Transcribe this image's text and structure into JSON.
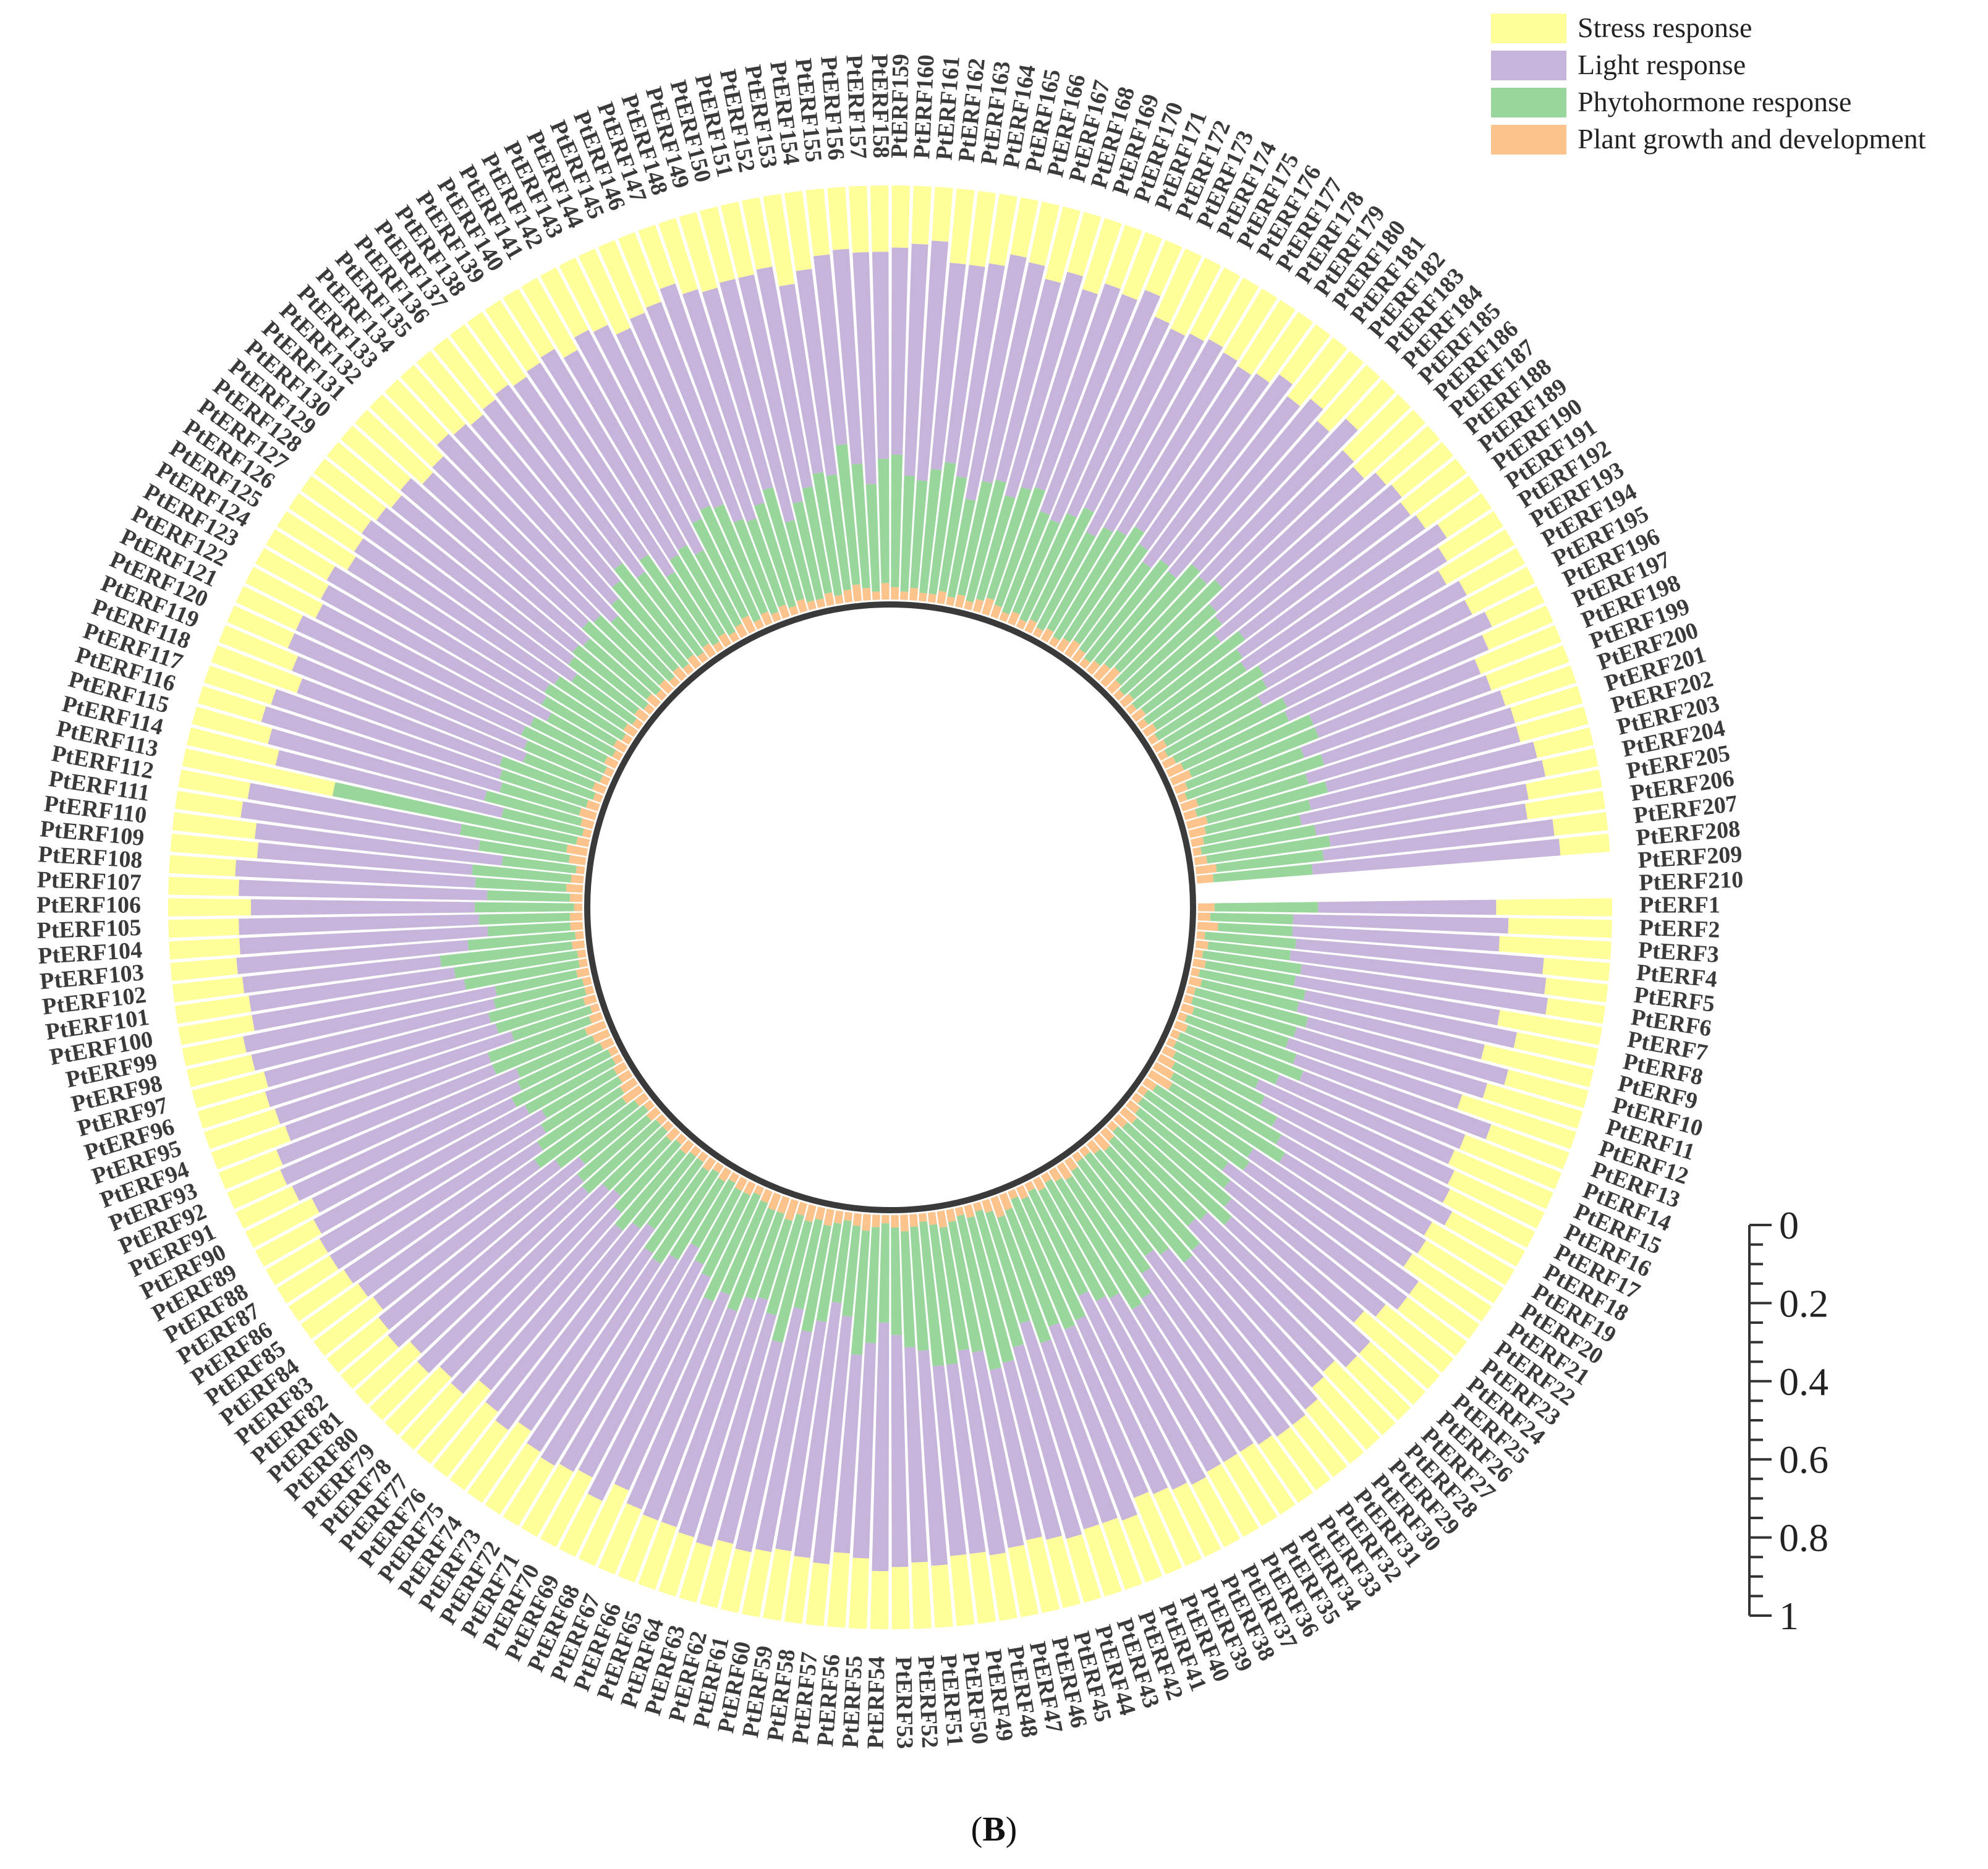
{
  "chart_data": {
    "type": "circular stacked bar",
    "gene_prefix": "PtERF",
    "count": 210,
    "value_axis": {
      "ticks": [
        "0",
        "0.2",
        "0.4",
        "0.6",
        "0.8",
        "1"
      ],
      "range": [
        0,
        1
      ]
    },
    "legend": [
      {
        "key": "stress",
        "label": "Stress response",
        "color": "#ffff99"
      },
      {
        "key": "light",
        "label": "Light response",
        "color": "#c6b4db"
      },
      {
        "key": "phyto",
        "label": "Phytohormone response",
        "color": "#99d69c"
      },
      {
        "key": "growth",
        "label": "Plant growth and development",
        "color": "#fcc48c"
      }
    ],
    "series": {
      "growth": [
        0.04,
        0.03,
        0.05,
        0.02,
        0.03,
        0.02,
        0.03,
        0.02,
        0.03,
        0.02,
        0.02,
        0.03,
        0.02,
        0.03,
        0.02,
        0.02,
        0.03,
        0.04,
        0.05,
        0.06,
        0.03,
        0.02,
        0.02,
        0.03,
        0.04,
        0.03,
        0.02,
        0.03,
        0.04,
        0.03,
        0.02,
        0.02,
        0.03,
        0.04,
        0.03,
        0.02,
        0.03,
        0.02,
        0.03,
        0.02,
        0.04,
        0.05,
        0.03,
        0.02,
        0.03,
        0.02,
        0.03,
        0.04,
        0.03,
        0.02,
        0.03,
        0.04,
        0.03,
        0.02,
        0.03,
        0.04,
        0.03,
        0.02,
        0.03,
        0.04,
        0.03,
        0.04,
        0.03,
        0.05,
        0.04,
        0.04,
        0.03,
        0.02,
        0.03,
        0.03,
        0.02,
        0.03,
        0.02,
        0.03,
        0.02,
        0.02,
        0.03,
        0.02,
        0.03,
        0.02,
        0.02,
        0.03,
        0.02,
        0.03,
        0.05,
        0.04,
        0.03,
        0.03,
        0.02,
        0.02,
        0.03,
        0.04,
        0.05,
        0.03,
        0.02,
        0.03,
        0.02,
        0.02,
        0.03,
        0.02,
        0.02,
        0.03,
        0.02,
        0.03,
        0.03,
        0.02,
        0.03,
        0.04,
        0.03,
        0.02,
        0.04,
        0.05,
        0.03,
        0.02,
        0.03,
        0.04,
        0.03,
        0.02,
        0.03,
        0.02,
        0.02,
        0.03,
        0.02,
        0.03,
        0.02,
        0.03,
        0.02,
        0.03,
        0.02,
        0.03,
        0.02,
        0.03,
        0.02,
        0.03,
        0.02,
        0.03,
        0.02,
        0.03,
        0.02,
        0.03,
        0.02,
        0.03,
        0.04,
        0.02,
        0.03,
        0.02,
        0.03,
        0.02,
        0.03,
        0.02,
        0.02,
        0.03,
        0.02,
        0.03,
        0.04,
        0.03,
        0.02,
        0.04,
        0.03,
        0.02,
        0.03,
        0.02,
        0.02,
        0.03,
        0.02,
        0.03,
        0.02,
        0.03,
        0.04,
        0.03,
        0.02,
        0.03,
        0.02,
        0.03,
        0.02,
        0.03,
        0.02,
        0.03,
        0.04,
        0.03,
        0.02,
        0.03,
        0.04,
        0.05,
        0.03,
        0.02,
        0.03,
        0.02,
        0.03,
        0.02,
        0.03,
        0.02,
        0.03,
        0.02,
        0.03,
        0.04,
        0.05,
        0.03,
        0.02,
        0.04,
        0.03,
        0.05,
        0.04,
        0.03,
        0.02,
        0.03,
        0.05,
        0.04
      ],
      "phyto": [
        0.25,
        0.2,
        0.18,
        0.22,
        0.2,
        0.24,
        0.22,
        0.26,
        0.24,
        0.28,
        0.26,
        0.24,
        0.28,
        0.3,
        0.26,
        0.22,
        0.24,
        0.28,
        0.3,
        0.32,
        0.28,
        0.3,
        0.26,
        0.28,
        0.3,
        0.34,
        0.3,
        0.28,
        0.32,
        0.34,
        0.3,
        0.28,
        0.3,
        0.34,
        0.36,
        0.32,
        0.3,
        0.28,
        0.32,
        0.34,
        0.3,
        0.32,
        0.28,
        0.34,
        0.36,
        0.38,
        0.32,
        0.3,
        0.34,
        0.35,
        0.3,
        0.28,
        0.26,
        0.24,
        0.28,
        0.3,
        0.22,
        0.2,
        0.24,
        0.26,
        0.22,
        0.3,
        0.25,
        0.2,
        0.22,
        0.26,
        0.24,
        0.28,
        0.22,
        0.2,
        0.18,
        0.22,
        0.26,
        0.24,
        0.2,
        0.22,
        0.24,
        0.22,
        0.18,
        0.2,
        0.24,
        0.22,
        0.2,
        0.24,
        0.26,
        0.24,
        0.22,
        0.2,
        0.24,
        0.26,
        0.22,
        0.2,
        0.24,
        0.26,
        0.2,
        0.22,
        0.24,
        0.22,
        0.2,
        0.28,
        0.3,
        0.32,
        0.26,
        0.2,
        0.22,
        0.24,
        0.2,
        0.22,
        0.24,
        0.18,
        0.22,
        0.26,
        0.6,
        0.2,
        0.24,
        0.2,
        0.22,
        0.24,
        0.18,
        0.2,
        0.22,
        0.2,
        0.18,
        0.2,
        0.22,
        0.2,
        0.18,
        0.2,
        0.22,
        0.2,
        0.24,
        0.22,
        0.2,
        0.22,
        0.26,
        0.28,
        0.24,
        0.26,
        0.2,
        0.22,
        0.24,
        0.2,
        0.26,
        0.3,
        0.28,
        0.24,
        0.22,
        0.26,
        0.28,
        0.2,
        0.24,
        0.26,
        0.3,
        0.28,
        0.34,
        0.3,
        0.26,
        0.3,
        0.32,
        0.28,
        0.26,
        0.3,
        0.32,
        0.28,
        0.24,
        0.28,
        0.3,
        0.26,
        0.28,
        0.3,
        0.26,
        0.24,
        0.28,
        0.3,
        0.26,
        0.28,
        0.3,
        0.32,
        0.28,
        0.26,
        0.3,
        0.28,
        0.32,
        0.3,
        0.34,
        0.3,
        0.28,
        0.26,
        0.3,
        0.28,
        0.26,
        0.3,
        0.28,
        0.26,
        0.3,
        0.28,
        0.32,
        0.34,
        0.3,
        0.32,
        0.28,
        0.3,
        0.26,
        0.24,
        0.28,
        0.3,
        0.26,
        0.24,
        0.3,
        0.26
      ],
      "light": [
        0.43,
        0.52,
        0.5,
        0.6,
        0.62,
        0.6,
        0.5,
        0.52,
        0.46,
        0.5,
        0.48,
        0.44,
        0.5,
        0.42,
        0.46,
        0.52,
        0.5,
        0.48,
        0.42,
        0.4,
        0.46,
        0.5,
        0.54,
        0.48,
        0.42,
        0.45,
        0.5,
        0.48,
        0.44,
        0.46,
        0.52,
        0.54,
        0.5,
        0.44,
        0.43,
        0.48,
        0.5,
        0.52,
        0.46,
        0.44,
        0.5,
        0.46,
        0.52,
        0.48,
        0.44,
        0.42,
        0.48,
        0.5,
        0.46,
        0.46,
        0.52,
        0.52,
        0.56,
        0.6,
        0.52,
        0.48,
        0.6,
        0.62,
        0.56,
        0.54,
        0.6,
        0.5,
        0.58,
        0.6,
        0.58,
        0.54,
        0.56,
        0.5,
        0.6,
        0.58,
        0.62,
        0.58,
        0.54,
        0.52,
        0.6,
        0.56,
        0.5,
        0.58,
        0.6,
        0.62,
        0.56,
        0.6,
        0.62,
        0.55,
        0.52,
        0.56,
        0.6,
        0.62,
        0.58,
        0.54,
        0.6,
        0.62,
        0.56,
        0.52,
        0.6,
        0.58,
        0.56,
        0.6,
        0.62,
        0.52,
        0.5,
        0.48,
        0.56,
        0.6,
        0.58,
        0.54,
        0.6,
        0.58,
        0.52,
        0.6,
        0.58,
        0.52,
        0.0,
        0.56,
        0.54,
        0.6,
        0.58,
        0.52,
        0.6,
        0.62,
        0.6,
        0.58,
        0.62,
        0.6,
        0.56,
        0.58,
        0.62,
        0.58,
        0.56,
        0.58,
        0.52,
        0.54,
        0.6,
        0.56,
        0.52,
        0.5,
        0.56,
        0.52,
        0.6,
        0.58,
        0.54,
        0.6,
        0.52,
        0.47,
        0.5,
        0.56,
        0.6,
        0.54,
        0.5,
        0.6,
        0.56,
        0.54,
        0.46,
        0.5,
        0.46,
        0.52,
        0.56,
        0.5,
        0.5,
        0.56,
        0.58,
        0.5,
        0.48,
        0.52,
        0.6,
        0.54,
        0.5,
        0.56,
        0.5,
        0.52,
        0.56,
        0.6,
        0.52,
        0.48,
        0.54,
        0.52,
        0.5,
        0.46,
        0.5,
        0.56,
        0.5,
        0.54,
        0.46,
        0.52,
        0.44,
        0.48,
        0.52,
        0.56,
        0.5,
        0.54,
        0.58,
        0.52,
        0.5,
        0.56,
        0.5,
        0.54,
        0.46,
        0.42,
        0.48,
        0.46,
        0.52,
        0.48,
        0.56,
        0.6,
        0.52,
        0.48,
        0.56,
        0.6,
        0.48,
        0.56
      ]
    },
    "bottom_caption": "(B)"
  }
}
